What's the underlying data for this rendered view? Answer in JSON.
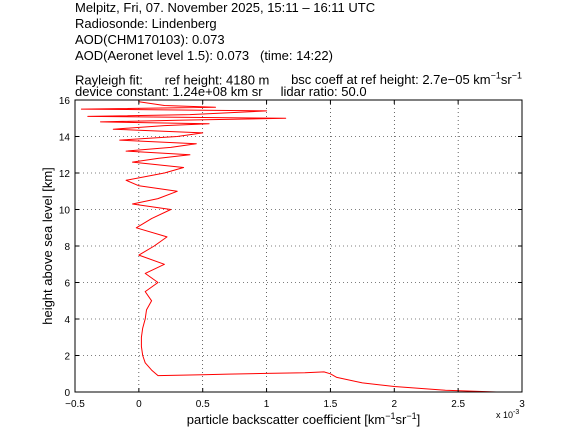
{
  "header": {
    "line1": "Melpitz, Fri, 07. November 2025, 15:11 – 16:11 UTC",
    "line2": "Radiosonde: Lindenberg",
    "line3": "AOD(CHM170103): 0.073",
    "line4": "AOD(Aeronet level 1.5): 0.073   (time: 14:22)",
    "rayleigh_label": "Rayleigh fit:",
    "ref_height": "ref height: 4180 m",
    "bsc_coeff_prefix": "bsc coeff at ref height: 2.7e−05 km",
    "bsc_coeff_exp1": "−1",
    "bsc_coeff_mid": "sr",
    "bsc_coeff_exp2": "−1",
    "device_constant": "device constant: 1.24e+08 km sr",
    "lidar_ratio": "lidar ratio: 50.0"
  },
  "chart_data": {
    "type": "line",
    "xlabel_main": "particle backscatter coefficient [km",
    "xlabel_exp1": "−1",
    "xlabel_mid": "sr",
    "xlabel_exp2": "−1",
    "xlabel_end": "]",
    "x_multiplier": "x 10",
    "x_multiplier_exp": "-3",
    "ylabel": "height above sea level [km]",
    "xlim": [
      -0.5,
      3
    ],
    "ylim": [
      0,
      16
    ],
    "xticks": [
      -0.5,
      0,
      0.5,
      1,
      1.5,
      2,
      2.5,
      3
    ],
    "xtick_labels": [
      "−0.5",
      "0",
      "0.5",
      "1",
      "1.5",
      "2",
      "2.5",
      "3"
    ],
    "yticks": [
      0,
      2,
      4,
      6,
      8,
      10,
      12,
      14,
      16
    ],
    "ytick_labels": [
      "0",
      "2",
      "4",
      "6",
      "8",
      "10",
      "12",
      "14",
      "16"
    ],
    "grid": true,
    "line_color": "#ff0000",
    "series": [
      {
        "x": [
          3.0,
          2.8,
          2.4,
          2.0,
          1.75,
          1.55,
          1.5,
          1.45,
          1.3,
          1.0,
          0.7,
          0.5,
          0.3,
          0.15,
          0.1,
          0.05,
          0.03,
          0.02,
          0.02,
          0.03,
          0.05,
          0.06,
          0.1,
          0.05,
          0.15,
          0.05,
          0.2,
          0.0,
          0.12,
          0.22,
          -0.02,
          0.1,
          0.25,
          -0.05,
          0.15,
          0.3,
          0.0,
          -0.1,
          0.2,
          0.35,
          -0.05,
          0.15,
          0.4,
          -0.1,
          0.25,
          0.45,
          -0.15,
          0.3,
          0.5,
          -0.2,
          0.2,
          0.55,
          -0.3,
          0.35,
          1.15,
          -0.4,
          0.4,
          1.0,
          -0.45,
          0.6,
          0.2,
          0.1,
          0.0,
          0.0
        ],
        "y": [
          0.0,
          0.0,
          0.1,
          0.3,
          0.5,
          0.8,
          1.0,
          1.1,
          1.05,
          1.02,
          0.98,
          0.95,
          0.92,
          0.9,
          1.2,
          1.6,
          2.0,
          2.5,
          3.0,
          3.5,
          4.0,
          4.5,
          5.0,
          5.5,
          6.0,
          6.5,
          7.0,
          7.5,
          8.0,
          8.5,
          9.0,
          9.5,
          10.0,
          10.3,
          10.6,
          11.0,
          11.3,
          11.6,
          12.0,
          12.3,
          12.6,
          12.8,
          13.0,
          13.2,
          13.4,
          13.6,
          13.8,
          14.0,
          14.2,
          14.4,
          14.6,
          14.7,
          14.8,
          14.9,
          15.0,
          15.1,
          15.2,
          15.4,
          15.5,
          15.6,
          15.7,
          15.8,
          15.9,
          16.0
        ]
      }
    ]
  }
}
